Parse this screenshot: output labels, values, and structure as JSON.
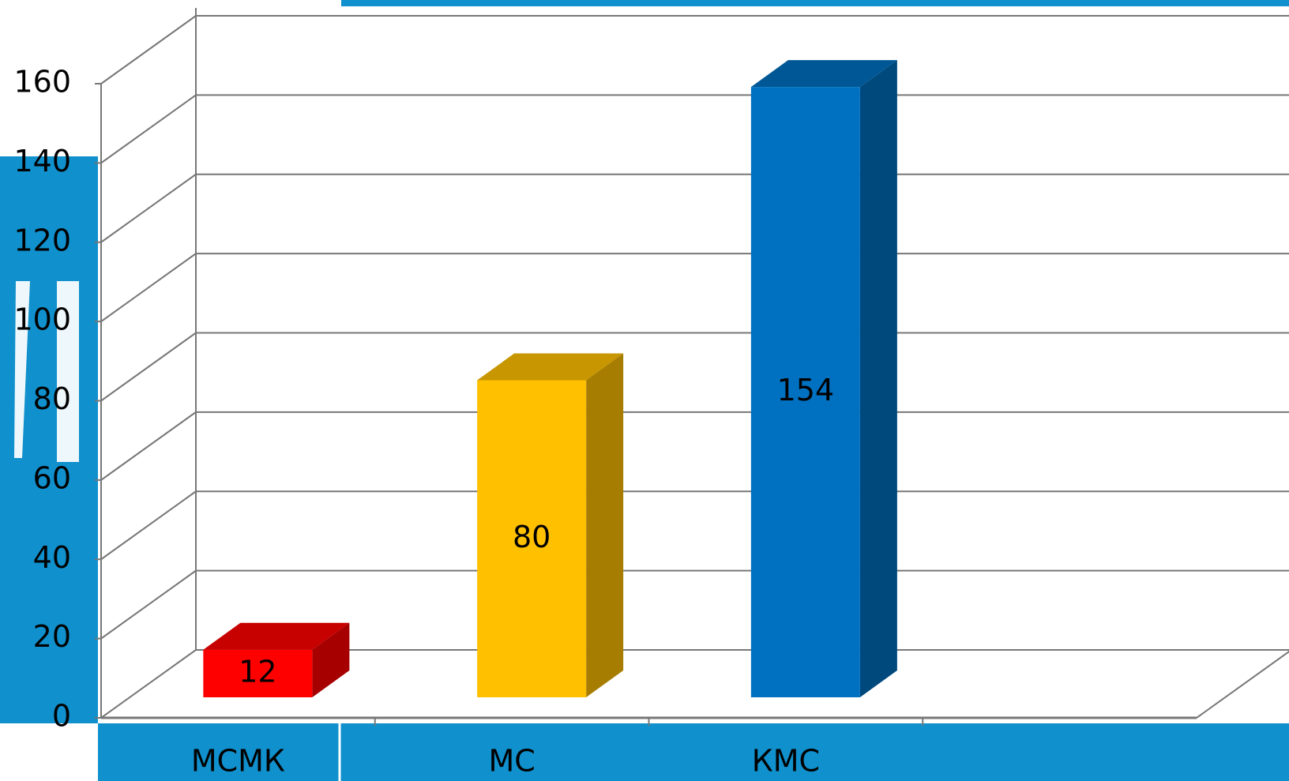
{
  "chart_data": {
    "type": "bar3d",
    "categories": [
      "МСМК",
      "МС",
      "КМС"
    ],
    "values": [
      12,
      80,
      154
    ],
    "colors": [
      "#ff0000",
      "#ffc000",
      "#0070c0"
    ],
    "ylim": [
      0,
      160
    ],
    "yticks": [
      0,
      20,
      40,
      60,
      80,
      100,
      120,
      140,
      160
    ],
    "grid": true
  }
}
